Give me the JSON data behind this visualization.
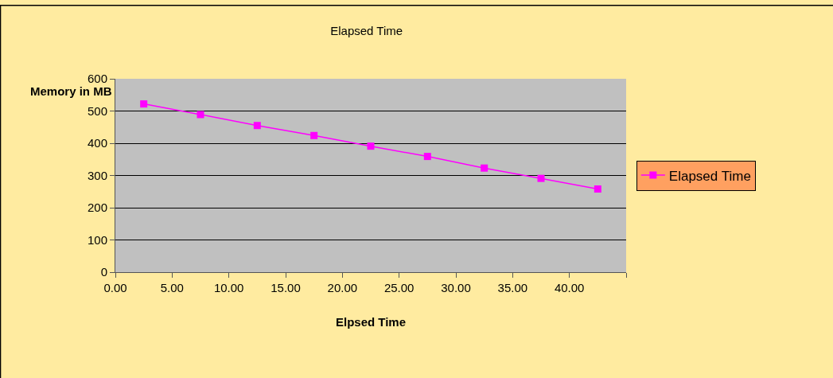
{
  "chart_data": {
    "type": "line",
    "title": "Elapsed Time",
    "xlabel": "Elpsed Time",
    "ylabel": "Memory in MB",
    "x": [
      2.5,
      7.5,
      12.5,
      17.5,
      22.5,
      27.5,
      32.5,
      37.5,
      42.5
    ],
    "series": [
      {
        "name": "Elapsed Time",
        "color": "#ff00ff",
        "values": [
          522,
          489,
          455,
          424,
          391,
          359,
          323,
          291,
          258
        ]
      }
    ],
    "xlim": [
      0,
      45
    ],
    "xticks": [
      {
        "value": 0,
        "label": "0.00"
      },
      {
        "value": 5,
        "label": "5.00"
      },
      {
        "value": 10,
        "label": "10.00"
      },
      {
        "value": 15,
        "label": "15.00"
      },
      {
        "value": 20,
        "label": "20.00"
      },
      {
        "value": 25,
        "label": "25.00"
      },
      {
        "value": 30,
        "label": "30.00"
      },
      {
        "value": 35,
        "label": "35.00"
      },
      {
        "value": 40,
        "label": "40.00"
      },
      {
        "value": 45,
        "label": null
      }
    ],
    "ylim": [
      0,
      600
    ],
    "yticks": [
      0,
      100,
      200,
      300,
      400,
      500,
      600
    ],
    "grid": "y",
    "legend": "right",
    "marker": "square",
    "line_style": "solid"
  }
}
